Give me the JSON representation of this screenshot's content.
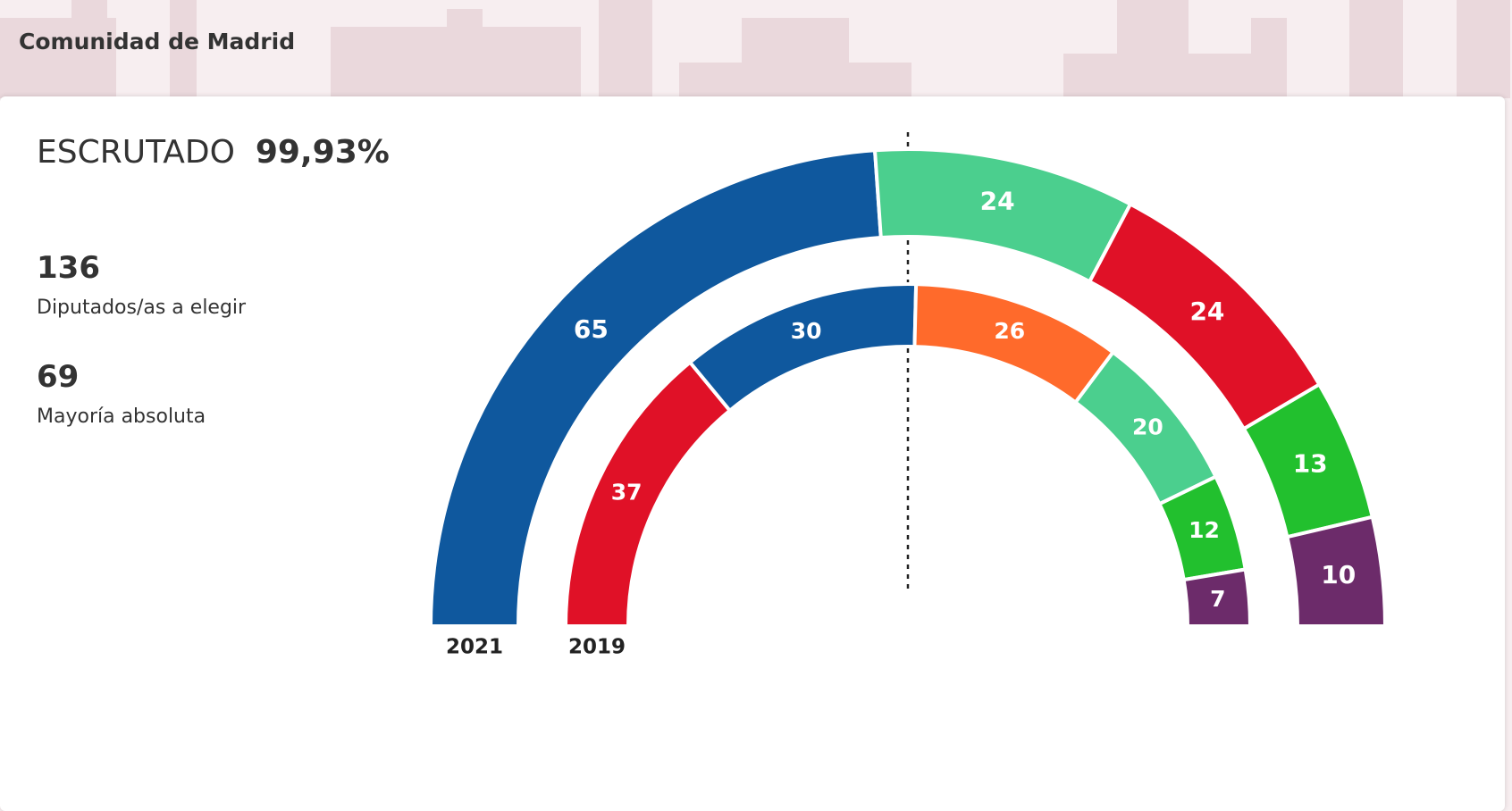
{
  "header": {
    "title": "Comunidad de Madrid"
  },
  "summary": {
    "counted_label": "ESCRUTADO",
    "counted_value": "99,93%",
    "seats": "136",
    "seats_label": "Diputados/as a elegir",
    "majority": "69",
    "majority_label": "Mayoría absoluta"
  },
  "chart_data": {
    "type": "hemicycle",
    "series": [
      {
        "name": "2021",
        "values": [
          65,
          24,
          24,
          13,
          10
        ],
        "colors": [
          "#0f589e",
          "#4bcf8e",
          "#e01127",
          "#22c02e",
          "#6c2b6a"
        ]
      },
      {
        "name": "2019",
        "values": [
          37,
          30,
          26,
          20,
          12,
          7
        ],
        "colors": [
          "#e01127",
          "#0f589e",
          "#ff6a2b",
          "#4bcf8e",
          "#22c02e",
          "#6c2b6a"
        ]
      }
    ]
  }
}
